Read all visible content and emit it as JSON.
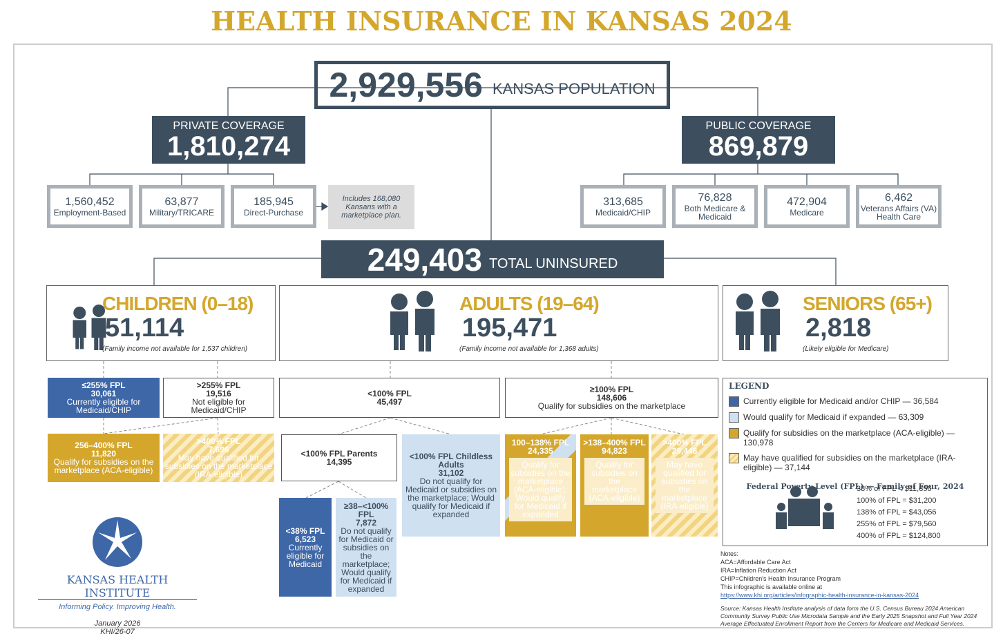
{
  "title": "HEALTH INSURANCE IN KANSAS 2024",
  "population": {
    "value": "2,929,556",
    "label": "KANSAS POPULATION"
  },
  "private": {
    "label": "PRIVATE COVERAGE",
    "value": "1,810,274",
    "items": [
      {
        "value": "1,560,452",
        "label": "Employment-Based"
      },
      {
        "value": "63,877",
        "label": "Military/TRICARE"
      },
      {
        "value": "185,945",
        "label": "Direct-Purchase"
      }
    ],
    "note": "Includes 168,080 Kansans with a marketplace plan."
  },
  "public": {
    "label": "PUBLIC COVERAGE",
    "value": "869,879",
    "items": [
      {
        "value": "313,685",
        "label": "Medicaid/CHIP"
      },
      {
        "value": "76,828",
        "label": "Both Medicare & Medicaid"
      },
      {
        "value": "472,904",
        "label": "Medicare"
      },
      {
        "value": "6,462",
        "label": "Veterans Affairs (VA) Health Care"
      }
    ]
  },
  "uninsured": {
    "value": "249,403",
    "label": "TOTAL UNINSURED"
  },
  "groups": [
    {
      "title": "CHILDREN (0–18)",
      "value": "51,114",
      "note": "(Family income not available for 1,537 children)"
    },
    {
      "title": "ADULTS (19–64)",
      "value": "195,471",
      "note": "(Family income not available for 1,368 adults)"
    },
    {
      "title": "SENIORS (65+)",
      "value": "2,818",
      "note": "(Likely eligible for Medicare)"
    }
  ],
  "boxes": [
    {
      "head": "≤255% FPL",
      "value": "30,061",
      "desc": "Currently eligible for Medicaid/CHIP"
    },
    {
      "head": ">255% FPL",
      "value": "19,516",
      "desc": "Not eligible for Medicaid/CHIP"
    },
    {
      "head": "256–400% FPL",
      "value": "11,820",
      "desc": "Qualify for subsidies on the marketplace (ACA-eligible)"
    },
    {
      "head": ">400% FPL",
      "value": "7,696",
      "desc": "May have qualified for subsidies on the marketplace (IRA-eligible)"
    },
    {
      "head": "<100% FPL",
      "value": "45,497"
    },
    {
      "head": "≥100% FPL",
      "value": "148,606",
      "desc": "Qualify for subsidies on the marketplace"
    },
    {
      "head": "<100% FPL Parents",
      "value": "14,395"
    },
    {
      "head": "<100% FPL Childless Adults",
      "value": "31,102",
      "desc": "Do not qualify for Medicaid or subsidies on the marketplace; Would qualify for Medicaid if expanded"
    },
    {
      "head": "<38% FPL",
      "value": "6,523",
      "desc": "Currently eligible for Medicaid"
    },
    {
      "head": "≥38–<100% FPL",
      "value": "7,872",
      "desc": "Do not qualify for Medicaid or subsidies on the marketplace; Would qualify for Medicaid if expanded"
    },
    {
      "head": "100–138% FPL",
      "value": "24,335",
      "desc": "Qualify for subsidies on the marketplace (ACA-eligible); Would qualify for Medicaid if expanded"
    },
    {
      "head": ">138–400% FPL",
      "value": "94,823",
      "desc": "Qualify for subsidies on the marketplace (ACA-eligible)"
    },
    {
      "head": ">400% FPL",
      "value": "29,448",
      "desc": "May have qualified for subsidies on the marketplace (IRA-eligible)"
    }
  ],
  "legend": {
    "title": "LEGEND",
    "items": [
      "Currently eligible for Medicaid and/or CHIP — 36,584",
      "Would qualify for Medicaid if expanded — 63,309",
      "Qualify for subsidies on the marketplace (ACA-eligible) — 130,978",
      "May have qualified for subsidies on the marketplace (IRA-eligible) — 37,144"
    ]
  },
  "fpl": {
    "title": "Federal Poverty Level (FPL) — Family of Four, 2024",
    "rows": [
      "38% of FPL = $11,856",
      "100% of FPL = $31,200",
      "138% of FPL = $43,056",
      "255% of FPL = $79,560",
      "400% of FPL = $124,800"
    ]
  },
  "notes": {
    "lines": [
      "Notes:",
      "ACA=Affordable Care Act",
      "IRA=Inflation Reduction Act",
      "CHIP=Children's Health Insurance Program",
      "This infographic is available online at"
    ],
    "link": "https://www.khi.org/articles/infographic-health-insurance-in-kansas-2024",
    "source": "Source: Kansas Health Institute analysis of data form the U.S. Census Bureau 2024 American Community Survey Public Use Microdata Sample and the Early 2025 Snapshot and Full Year 2024 Average Effectuated Enrollment Report from the Centers for Medicare and Medicaid Services."
  },
  "logo": {
    "name": "KANSAS HEALTH INSTITUTE",
    "tagline": "Informing Policy. Improving Health.",
    "date": "January 2026",
    "code": "KHI/26-07"
  }
}
